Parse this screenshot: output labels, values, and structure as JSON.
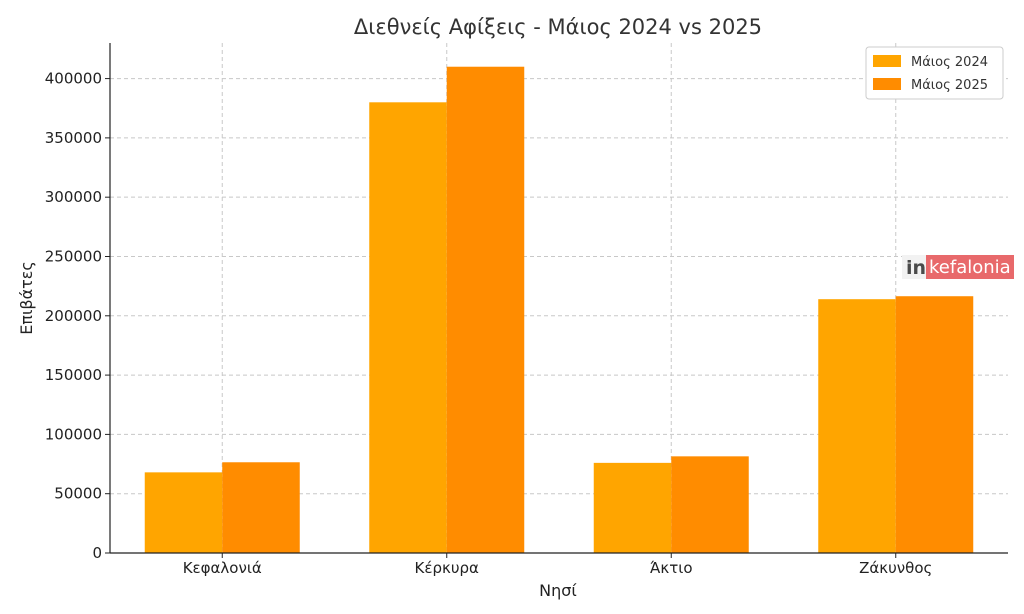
{
  "chart_data": {
    "type": "bar",
    "title": "Διεθνείς Αφίξεις - Μάιος 2024 vs 2025",
    "xlabel": "Νησί",
    "ylabel": "Επιβάτες",
    "categories": [
      "Κεφαλονιά",
      "Κέρκυρα",
      "Άκτιο",
      "Ζάκυνθος"
    ],
    "series": [
      {
        "name": "Μάιος 2024",
        "color": "#FFA500",
        "values": [
          68000,
          380000,
          76000,
          214000
        ]
      },
      {
        "name": "Μάιος 2025",
        "color": "#FF8C00",
        "values": [
          76500,
          410000,
          81500,
          216500
        ]
      }
    ],
    "ylim": [
      0,
      430000
    ],
    "yticks": [
      0,
      50000,
      100000,
      150000,
      200000,
      250000,
      300000,
      350000,
      400000
    ],
    "grid": true,
    "legend_position": "top-right"
  },
  "watermark": {
    "prefix": "in",
    "suffix": "kefalonia",
    "bg_color": "#E8696B"
  }
}
